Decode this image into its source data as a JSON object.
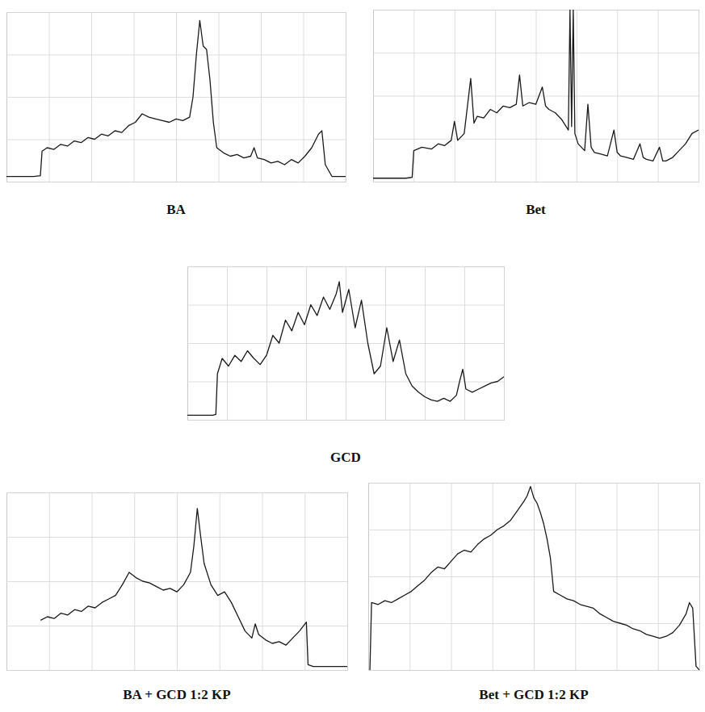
{
  "chart_data": [
    {
      "type": "line",
      "title": "BA",
      "color": "#1a1a1a",
      "grid": true,
      "tick_labels": false,
      "xlim": [
        0,
        100
      ],
      "ylim": [
        0,
        100
      ],
      "xticks": [
        0,
        12.5,
        25,
        37.5,
        50,
        62.5,
        75,
        87.5,
        100
      ],
      "yticks": [
        0,
        25,
        50,
        75,
        100
      ],
      "x": [
        0,
        4,
        8,
        10,
        10.5,
        12,
        14,
        16,
        18,
        20,
        22,
        24,
        26,
        28,
        30,
        32,
        34,
        36,
        38,
        40,
        42,
        44,
        46,
        48,
        50,
        52,
        54,
        55,
        56,
        57,
        58,
        59,
        60,
        61,
        62,
        64,
        66,
        68,
        70,
        72,
        73,
        74,
        76,
        78,
        80,
        82,
        84,
        86,
        88,
        90,
        92,
        93,
        94,
        96,
        100
      ],
      "values": [
        3,
        3,
        3,
        3.5,
        18,
        20,
        19,
        22,
        21,
        24,
        23,
        26,
        25,
        28,
        27,
        30,
        29,
        33,
        35,
        40,
        38,
        37,
        36,
        35,
        37,
        36,
        38,
        50,
        75,
        95,
        80,
        78,
        60,
        35,
        20,
        17,
        15,
        16,
        14,
        15,
        20,
        14,
        13,
        11,
        12,
        10,
        13,
        11,
        15,
        20,
        28,
        30,
        10,
        3,
        3
      ]
    },
    {
      "type": "line",
      "title": "Bet",
      "color": "#1a1a1a",
      "grid": true,
      "tick_labels": false,
      "xlim": [
        0,
        100
      ],
      "ylim": [
        0,
        100
      ],
      "xticks": [
        0,
        12.5,
        25,
        37.5,
        50,
        62.5,
        75,
        87.5,
        100
      ],
      "yticks": [
        0,
        25,
        50,
        75,
        100
      ],
      "x": [
        0,
        5,
        10,
        12,
        12.5,
        15,
        18,
        20,
        22,
        24,
        25,
        26,
        28,
        30,
        31,
        32,
        34,
        36,
        38,
        40,
        42,
        44,
        45,
        46,
        48,
        50,
        52,
        53,
        54,
        56,
        58,
        60,
        60.5,
        61,
        61.5,
        62,
        63,
        64,
        65,
        66,
        67,
        68,
        70,
        72,
        74,
        75,
        76,
        78,
        80,
        82,
        83,
        84,
        86,
        88,
        89,
        90,
        92,
        94,
        96,
        98,
        100
      ],
      "values": [
        2,
        2,
        2,
        2.5,
        18,
        20,
        19,
        22,
        21,
        24,
        35,
        24,
        28,
        60,
        34,
        38,
        37,
        42,
        40,
        44,
        43,
        45,
        62,
        44,
        46,
        45,
        55,
        44,
        42,
        40,
        36,
        30,
        100,
        32,
        100,
        28,
        22,
        20,
        18,
        45,
        20,
        17,
        16,
        15,
        30,
        17,
        15,
        14,
        13,
        22,
        14,
        13,
        12,
        20,
        12,
        12,
        14,
        18,
        22,
        28,
        30
      ]
    },
    {
      "type": "line",
      "title": "GCD",
      "color": "#1a1a1a",
      "grid": true,
      "tick_labels": false,
      "xlim": [
        0,
        100
      ],
      "ylim": [
        0,
        100
      ],
      "xticks": [
        0,
        12.5,
        25,
        37.5,
        50,
        62.5,
        75,
        87.5,
        100
      ],
      "yticks": [
        0,
        25,
        50,
        75,
        100
      ],
      "x": [
        0,
        4,
        8,
        9,
        9.5,
        11,
        13,
        15,
        17,
        19,
        21,
        23,
        25,
        27,
        29,
        31,
        33,
        35,
        37,
        39,
        41,
        43,
        45,
        47,
        48,
        49,
        51,
        53,
        55,
        57,
        58,
        59,
        61,
        63,
        65,
        67,
        69,
        71,
        73,
        75,
        77,
        79,
        81,
        83,
        85,
        86,
        87,
        88,
        90,
        92,
        94,
        96,
        98,
        100
      ],
      "values": [
        3,
        3,
        3,
        3.5,
        30,
        40,
        35,
        42,
        38,
        45,
        40,
        36,
        42,
        55,
        50,
        65,
        58,
        70,
        62,
        75,
        68,
        80,
        72,
        82,
        90,
        70,
        85,
        60,
        78,
        50,
        40,
        30,
        35,
        60,
        38,
        52,
        30,
        22,
        18,
        15,
        13,
        12,
        14,
        12,
        16,
        25,
        33,
        20,
        18,
        20,
        22,
        24,
        25,
        28
      ]
    },
    {
      "type": "line",
      "title": "BA + GCD 1:2 KP",
      "color": "#1a1a1a",
      "grid": true,
      "tick_labels": false,
      "xlim": [
        0,
        100
      ],
      "ylim": [
        0,
        100
      ],
      "xticks": [
        0,
        12.5,
        25,
        37.5,
        50,
        62.5,
        75,
        87.5,
        100
      ],
      "yticks": [
        0,
        25,
        50,
        75,
        100
      ],
      "x": [
        10,
        12,
        14,
        16,
        18,
        20,
        22,
        24,
        26,
        28,
        30,
        32,
        34,
        36,
        38,
        40,
        42,
        44,
        46,
        48,
        50,
        52,
        54,
        55,
        56,
        57,
        58,
        60,
        62,
        64,
        66,
        68,
        70,
        72,
        73,
        74,
        76,
        78,
        80,
        82,
        84,
        86,
        88,
        88.5,
        90,
        95,
        100
      ],
      "values": [
        28,
        30,
        29,
        32,
        31,
        34,
        33,
        36,
        35,
        38,
        40,
        42,
        48,
        55,
        52,
        50,
        49,
        47,
        45,
        46,
        44,
        48,
        55,
        70,
        91,
        75,
        60,
        48,
        42,
        44,
        38,
        30,
        22,
        18,
        26,
        20,
        17,
        15,
        16,
        14,
        18,
        22,
        27,
        3,
        2,
        2,
        2
      ]
    },
    {
      "type": "line",
      "title": "Bet + GCD 1:2 KP",
      "color": "#1a1a1a",
      "grid": true,
      "tick_labels": false,
      "xlim": [
        0,
        100
      ],
      "ylim": [
        0,
        100
      ],
      "xticks": [
        0,
        12.5,
        25,
        37.5,
        50,
        62.5,
        75,
        87.5,
        100
      ],
      "yticks": [
        0,
        25,
        50,
        75,
        100
      ],
      "x": [
        0.5,
        1,
        3,
        5,
        7,
        9,
        11,
        13,
        15,
        17,
        19,
        21,
        23,
        25,
        27,
        29,
        31,
        33,
        35,
        37,
        39,
        41,
        43,
        45,
        47,
        48,
        49,
        50,
        51,
        52,
        53,
        54,
        55,
        56,
        58,
        60,
        62,
        64,
        66,
        68,
        70,
        72,
        74,
        76,
        78,
        80,
        82,
        84,
        86,
        88,
        90,
        92,
        94,
        96,
        97,
        98,
        99,
        100
      ],
      "values": [
        0,
        36,
        35,
        37,
        36,
        38,
        40,
        42,
        45,
        48,
        52,
        55,
        54,
        58,
        62,
        64,
        63,
        67,
        70,
        72,
        75,
        77,
        80,
        85,
        90,
        93,
        98,
        92,
        89,
        84,
        78,
        70,
        60,
        42,
        40,
        38,
        37,
        35,
        34,
        33,
        30,
        28,
        26,
        25,
        24,
        22,
        21,
        19,
        18,
        17,
        18,
        20,
        24,
        30,
        36,
        33,
        2,
        0
      ]
    }
  ]
}
